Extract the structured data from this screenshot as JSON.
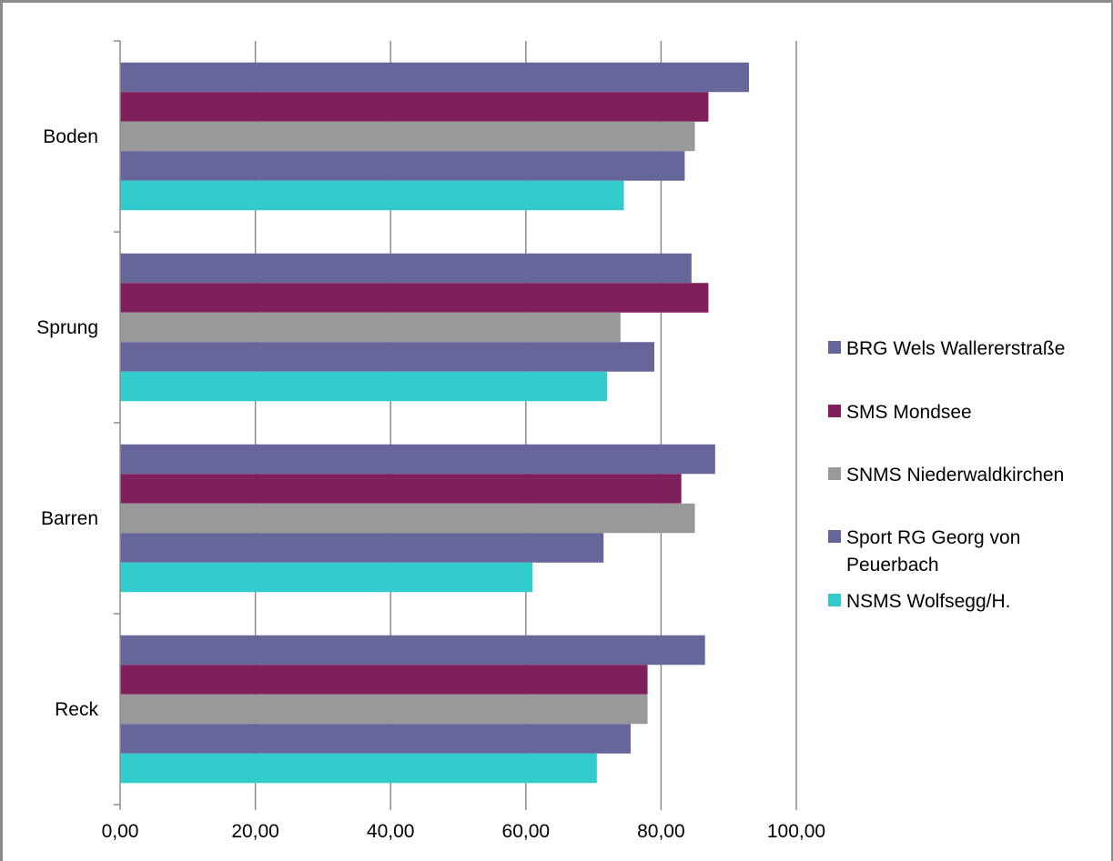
{
  "chart_data": {
    "type": "bar",
    "orientation": "horizontal",
    "categories": [
      "Boden",
      "Sprung",
      "Barren",
      "Reck"
    ],
    "series": [
      {
        "name": "BRG Wels Wallererstraße",
        "color": "#66669a",
        "values": [
          93,
          84.5,
          88,
          86.5
        ]
      },
      {
        "name": "SMS Mondsee",
        "color": "#7f1f5c",
        "values": [
          87,
          87,
          83,
          78
        ]
      },
      {
        "name": "SNMS Niederwaldkirchen",
        "color": "#999999",
        "values": [
          85,
          74,
          85,
          78
        ]
      },
      {
        "name": "Sport RG Georg von Peuerbach",
        "color": "#66669a",
        "values": [
          83.5,
          79,
          71.5,
          75.5
        ]
      },
      {
        "name": "NSMS Wolfsegg/H.",
        "color": "#33cccc",
        "values": [
          74.5,
          72,
          61,
          70.5
        ]
      }
    ],
    "xlim": [
      0,
      100
    ],
    "xticks": [
      "0,00",
      "20,00",
      "40,00",
      "60,00",
      "80,00",
      "100,00"
    ],
    "grid": true,
    "legend": "right"
  }
}
